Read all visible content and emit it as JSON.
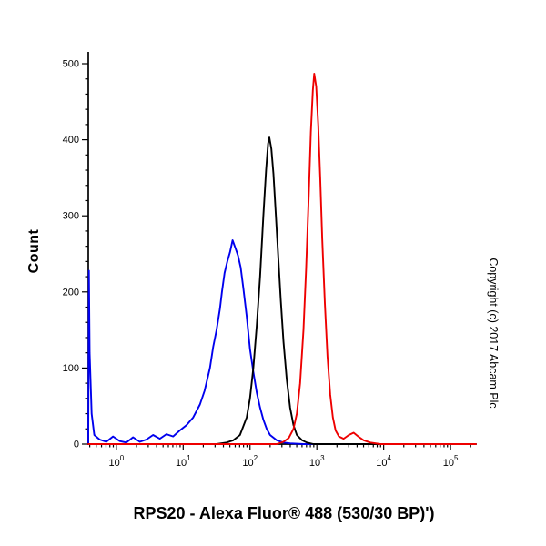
{
  "chart_data": {
    "type": "line",
    "title": "RPS20 - Alexa Fluor® 488 (530/30 BP)')",
    "ylabel": "Count",
    "copyright": "Copyright (c) 2017 Abcam Plc",
    "x_scale": "log10",
    "x_range_log": [
      -0.42,
      5.38
    ],
    "x_ticks_exponents": [
      0,
      1,
      2,
      3,
      4,
      5
    ],
    "ylim": [
      0,
      515
    ],
    "y_ticks": [
      0,
      100,
      200,
      300,
      400,
      500
    ],
    "grid": false,
    "legend": "none",
    "series": [
      {
        "name": "blue",
        "color": "#0000ee",
        "peak_x": 55,
        "peak_count": 268,
        "points": [
          [
            -0.42,
            0
          ],
          [
            -0.41,
            228
          ],
          [
            -0.4,
            120
          ],
          [
            -0.37,
            40
          ],
          [
            -0.33,
            12
          ],
          [
            -0.25,
            6
          ],
          [
            -0.15,
            3
          ],
          [
            -0.05,
            10
          ],
          [
            0.05,
            4
          ],
          [
            0.15,
            2
          ],
          [
            0.25,
            9
          ],
          [
            0.35,
            3
          ],
          [
            0.45,
            6
          ],
          [
            0.55,
            12
          ],
          [
            0.65,
            7
          ],
          [
            0.75,
            13
          ],
          [
            0.85,
            10
          ],
          [
            0.95,
            18
          ],
          [
            1.05,
            25
          ],
          [
            1.15,
            35
          ],
          [
            1.25,
            52
          ],
          [
            1.32,
            70
          ],
          [
            1.4,
            100
          ],
          [
            1.45,
            128
          ],
          [
            1.5,
            150
          ],
          [
            1.55,
            178
          ],
          [
            1.58,
            200
          ],
          [
            1.62,
            225
          ],
          [
            1.66,
            240
          ],
          [
            1.7,
            252
          ],
          [
            1.74,
            268
          ],
          [
            1.78,
            258
          ],
          [
            1.82,
            248
          ],
          [
            1.86,
            232
          ],
          [
            1.9,
            205
          ],
          [
            1.95,
            168
          ],
          [
            2.0,
            125
          ],
          [
            2.05,
            95
          ],
          [
            2.1,
            68
          ],
          [
            2.15,
            48
          ],
          [
            2.2,
            32
          ],
          [
            2.25,
            20
          ],
          [
            2.3,
            12
          ],
          [
            2.4,
            5
          ],
          [
            2.5,
            2
          ],
          [
            2.6,
            1
          ],
          [
            2.8,
            0
          ],
          [
            5.38,
            0
          ]
        ]
      },
      {
        "name": "black",
        "color": "#000000",
        "peak_x": 195,
        "peak_count": 403,
        "points": [
          [
            -0.42,
            0
          ],
          [
            1.5,
            0
          ],
          [
            1.65,
            2
          ],
          [
            1.75,
            5
          ],
          [
            1.85,
            12
          ],
          [
            1.95,
            35
          ],
          [
            2.0,
            60
          ],
          [
            2.05,
            100
          ],
          [
            2.1,
            155
          ],
          [
            2.15,
            220
          ],
          [
            2.2,
            300
          ],
          [
            2.24,
            360
          ],
          [
            2.27,
            395
          ],
          [
            2.29,
            403
          ],
          [
            2.32,
            388
          ],
          [
            2.35,
            355
          ],
          [
            2.38,
            310
          ],
          [
            2.42,
            250
          ],
          [
            2.46,
            190
          ],
          [
            2.5,
            135
          ],
          [
            2.55,
            85
          ],
          [
            2.6,
            48
          ],
          [
            2.65,
            25
          ],
          [
            2.7,
            12
          ],
          [
            2.78,
            5
          ],
          [
            2.85,
            2
          ],
          [
            2.95,
            0
          ],
          [
            5.38,
            0
          ]
        ]
      },
      {
        "name": "red",
        "color": "#ee0000",
        "peak_x": 910,
        "peak_count": 487,
        "points": [
          [
            -0.42,
            0
          ],
          [
            2.4,
            0
          ],
          [
            2.5,
            3
          ],
          [
            2.58,
            8
          ],
          [
            2.65,
            20
          ],
          [
            2.7,
            40
          ],
          [
            2.75,
            80
          ],
          [
            2.8,
            150
          ],
          [
            2.84,
            230
          ],
          [
            2.88,
            330
          ],
          [
            2.91,
            410
          ],
          [
            2.94,
            465
          ],
          [
            2.96,
            487
          ],
          [
            2.99,
            470
          ],
          [
            3.02,
            420
          ],
          [
            3.05,
            350
          ],
          [
            3.08,
            270
          ],
          [
            3.12,
            185
          ],
          [
            3.16,
            115
          ],
          [
            3.2,
            65
          ],
          [
            3.24,
            35
          ],
          [
            3.28,
            18
          ],
          [
            3.33,
            10
          ],
          [
            3.4,
            7
          ],
          [
            3.48,
            12
          ],
          [
            3.55,
            15
          ],
          [
            3.62,
            10
          ],
          [
            3.7,
            5
          ],
          [
            3.8,
            2
          ],
          [
            3.95,
            0
          ],
          [
            5.38,
            0
          ]
        ]
      }
    ]
  }
}
